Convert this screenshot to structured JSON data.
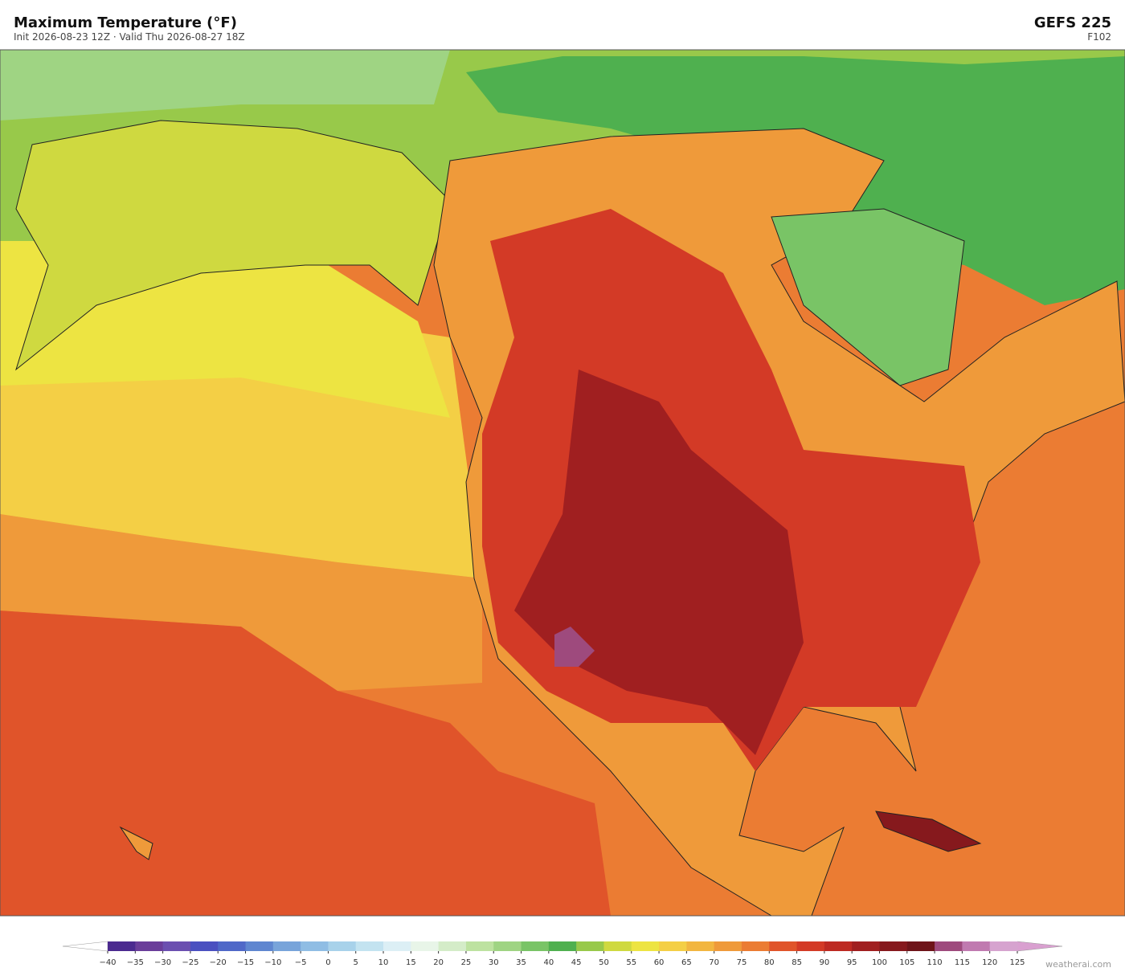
{
  "header": {
    "title": "Maximum Temperature  (°F)",
    "subtitle": "Init 2026-08-23 12Z   ·   Valid Thu 2026-08-27 18Z",
    "model": "GEFS  225",
    "forecast_hour": "F102"
  },
  "colorbar": {
    "ticks": [
      {
        "value": -40,
        "label": "−40"
      },
      {
        "value": -35,
        "label": "−35"
      },
      {
        "value": -30,
        "label": "−30"
      },
      {
        "value": -25,
        "label": "−25"
      },
      {
        "value": -20,
        "label": "−20"
      },
      {
        "value": -15,
        "label": "−15"
      },
      {
        "value": -10,
        "label": "−10"
      },
      {
        "value": -5,
        "label": "−5"
      },
      0,
      5,
      10,
      15,
      20,
      25,
      30,
      35,
      40,
      45,
      50,
      55,
      60,
      65,
      70,
      75,
      80,
      85,
      90,
      95,
      100,
      105,
      110,
      115,
      120,
      125
    ],
    "colors": [
      "#4b2a8f",
      "#6a3d9a",
      "#6b4fb0",
      "#4a50c0",
      "#4f68c8",
      "#5f86d0",
      "#78a4da",
      "#8fbde4",
      "#a8d2ea",
      "#c3e3f0",
      "#dceff5",
      "#e8f5e8",
      "#d4ecc8",
      "#bde2a0",
      "#9fd483",
      "#79c466",
      "#4fb04f",
      "#98c94a",
      "#cfd940",
      "#ede442",
      "#f4cf45",
      "#f2b640",
      "#ef9a3a",
      "#eb7c33",
      "#e0542a",
      "#d33a26",
      "#bd2a22",
      "#a01f20",
      "#86191d",
      "#6e1419",
      "#9e4a7d",
      "#c07ab0",
      "#d6a3cf"
    ],
    "under_color": "#ffffff",
    "over_color": "#d9a0d0"
  },
  "watermark": "weatherai.com"
}
